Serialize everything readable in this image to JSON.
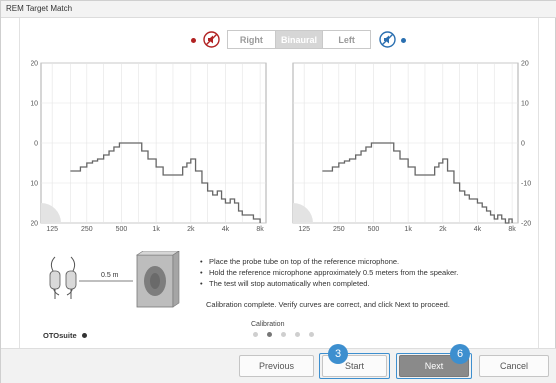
{
  "window": {
    "title": "REM Target Match"
  },
  "ear_selector": {
    "options": [
      "Right",
      "Binaural",
      "Left"
    ],
    "selected": "Binaural",
    "right_color": "#b12222",
    "left_color": "#2a6fb0"
  },
  "charts": {
    "y_ticks": [
      "20",
      "10",
      "0",
      "-10",
      "-20"
    ],
    "x_ticks": [
      "125",
      "250",
      "500",
      "1k",
      "2k",
      "4k",
      "8k"
    ]
  },
  "chart_data": [
    {
      "type": "line",
      "name": "right-chart",
      "x_scale": "log",
      "ylim": [
        -20,
        20
      ],
      "grid": true,
      "x": [
        180,
        200,
        220,
        250,
        280,
        310,
        350,
        390,
        430,
        480,
        560,
        650,
        750,
        850,
        1000,
        1150,
        1300,
        1500,
        1700,
        1850,
        2000,
        2200,
        2500,
        2800,
        3100,
        3400,
        3700,
        4000,
        4400,
        4800,
        5200,
        5600,
        6000,
        6500,
        7000,
        7500,
        8000
      ],
      "y": [
        -7,
        -7,
        -6,
        -5,
        -4.5,
        -4,
        -3,
        -2,
        -1,
        0,
        0,
        0,
        -2,
        -4,
        -6,
        -8,
        -8,
        -8,
        -6,
        -5,
        -4,
        -7,
        -10,
        -12,
        -13,
        -12,
        -14,
        -15,
        -14,
        -15,
        -17,
        -18,
        -18,
        -18,
        -19,
        -19,
        -20
      ]
    },
    {
      "type": "line",
      "name": "left-chart",
      "x_scale": "log",
      "ylim": [
        -20,
        20
      ],
      "grid": true,
      "x": [
        180,
        200,
        220,
        250,
        280,
        310,
        350,
        390,
        430,
        480,
        560,
        650,
        750,
        850,
        1000,
        1150,
        1300,
        1500,
        1700,
        1850,
        2000,
        2200,
        2500,
        2800,
        3100,
        3400,
        3700,
        4000,
        4400,
        4800,
        5200,
        5600,
        6000,
        6500,
        7000,
        7500,
        8000
      ],
      "y": [
        -7,
        -7,
        -6,
        -5,
        -4.5,
        -4,
        -3,
        -2,
        -1,
        0,
        0,
        0,
        -2,
        -4,
        -6,
        -8,
        -8,
        -8,
        -6,
        -5,
        -4,
        -7,
        -10,
        -12,
        -13,
        -14,
        -14,
        -15,
        -16,
        -17,
        -18,
        -19,
        -18,
        -19,
        -20,
        -19,
        -20
      ]
    }
  ],
  "setup": {
    "distance_label": "0.5 m"
  },
  "instructions": [
    "Place the probe tube on top of the reference microphone.",
    "Hold the reference microphone approximately 0.5 meters from the speaker.",
    "The test will stop automatically when completed."
  ],
  "status_message": "Calibration complete. Verify curves are correct, and click Next to proceed.",
  "progress": {
    "label": "Calibration",
    "total_steps": 5,
    "current_step": 2
  },
  "brand": {
    "name": "OTOsuite"
  },
  "footer": {
    "previous_label": "Previous",
    "start_label": "Start",
    "next_label": "Next",
    "cancel_label": "Cancel",
    "start_badge": "3",
    "next_badge": "6",
    "badge_color": "#3d8fcf"
  }
}
